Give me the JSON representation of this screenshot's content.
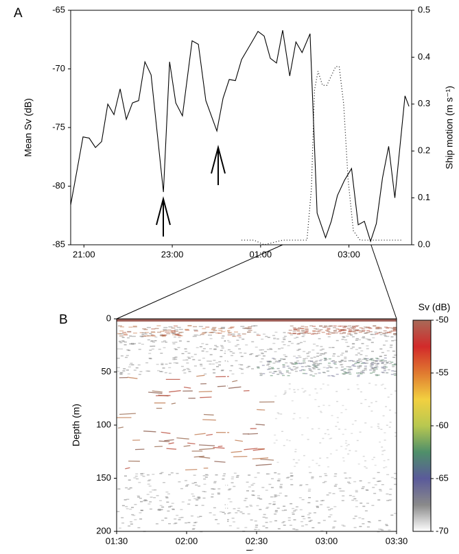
{
  "chart_data": [
    {
      "type": "line",
      "panel_label": "A",
      "ylabel": "Mean Sv (dB)",
      "y2label": "Ship motion (m s⁻¹)",
      "xlim": [
        20.7,
        28.42
      ],
      "xticks": [
        {
          "value": 21,
          "label": "21:00"
        },
        {
          "value": 23,
          "label": "23:00"
        },
        {
          "value": 25,
          "label": "01:00"
        },
        {
          "value": 27,
          "label": "03:00"
        }
      ],
      "ylim": [
        -85,
        -65
      ],
      "yticks": [
        -85,
        -80,
        -75,
        -70,
        -65
      ],
      "y2lim": [
        0,
        0.5
      ],
      "y2ticks": [
        {
          "value": 0,
          "label": "0.0"
        },
        0.1,
        0.2,
        0.3,
        0.4,
        0.5
      ],
      "series": [
        {
          "color": "#000000",
          "style": "solid",
          "x": [
            20.7,
            20.85,
            20.98,
            21.12,
            21.26,
            21.4,
            21.54,
            21.68,
            21.82,
            21.96,
            22.1,
            22.24,
            22.38,
            22.52,
            22.8,
            22.94,
            23.08,
            23.23,
            23.45,
            23.59,
            23.76,
            24.01,
            24.15,
            24.29,
            24.43,
            24.57,
            24.71,
            24.85,
            24.94,
            25.08,
            25.22,
            25.36,
            25.5,
            25.66,
            25.8,
            25.94,
            26.12,
            26.28,
            26.47,
            26.6,
            26.74,
            26.9,
            27.06,
            27.21,
            27.35,
            27.49,
            27.62,
            27.76,
            27.9,
            28.04,
            28.27,
            28.36
          ],
          "values": [
            -81.6,
            -78.5,
            -75.8,
            -75.9,
            -76.7,
            -76.2,
            -73.0,
            -73.9,
            -71.7,
            -74.3,
            -72.9,
            -72.7,
            -69.4,
            -70.5,
            -80.5,
            -69.4,
            -72.9,
            -74.0,
            -67.6,
            -67.9,
            -72.7,
            -75.3,
            -72.5,
            -70.9,
            -71.0,
            -69.2,
            -68.3,
            -67.4,
            -66.8,
            -67.2,
            -69.1,
            -69.5,
            -66.7,
            -70.6,
            -67.7,
            -68.6,
            -67.0,
            -82.3,
            -84.4,
            -83.0,
            -80.8,
            -79.5,
            -78.5,
            -83.3,
            -83.0,
            -84.7,
            -83.2,
            -79.3,
            -76.6,
            -81.0,
            -72.3,
            -73.2
          ]
        },
        {
          "color": "#000000",
          "style": "dotted",
          "axis": "y2",
          "x": [
            24.57,
            24.85,
            25.08,
            25.5,
            25.8,
            26.05,
            26.15,
            26.22,
            26.3,
            26.4,
            26.5,
            26.6,
            26.7,
            26.78,
            26.88,
            26.98,
            27.1,
            27.25,
            27.45,
            27.7,
            28.0,
            28.2
          ],
          "values": [
            0.01,
            0.01,
            0.0,
            0.01,
            0.01,
            0.01,
            0.12,
            0.33,
            0.37,
            0.34,
            0.34,
            0.36,
            0.38,
            0.38,
            0.3,
            0.14,
            0.03,
            0.01,
            0.01,
            0.01,
            0.01,
            0.01
          ]
        }
      ]
    },
    {
      "type": "echogram",
      "panel_label": "B",
      "xlabel": "Time",
      "ylabel": "Depth (m)",
      "xlim": [
        25.5,
        27.5
      ],
      "xticks": [
        {
          "value": 25.5,
          "label": "01:30"
        },
        {
          "value": 26,
          "label": "02:00"
        },
        {
          "value": 26.5,
          "label": "02:30"
        },
        {
          "value": 27,
          "label": "03:00"
        },
        {
          "value": 27.5,
          "label": "03:30"
        }
      ],
      "ylim": [
        200,
        0
      ],
      "yticks": [
        0,
        50,
        100,
        150,
        200
      ],
      "colorbar": {
        "label": "Sv (dB)",
        "lim": [
          -70,
          -50
        ],
        "ticks": [
          -50,
          -55,
          -60,
          -65,
          -70
        ],
        "colormap": [
          "#ffffff",
          "#8a8a8a",
          "#5a5a9a",
          "#4f8f6a",
          "#b8c850",
          "#f2d040",
          "#e07a30",
          "#d22a2a",
          "#a86a58"
        ]
      }
    }
  ]
}
